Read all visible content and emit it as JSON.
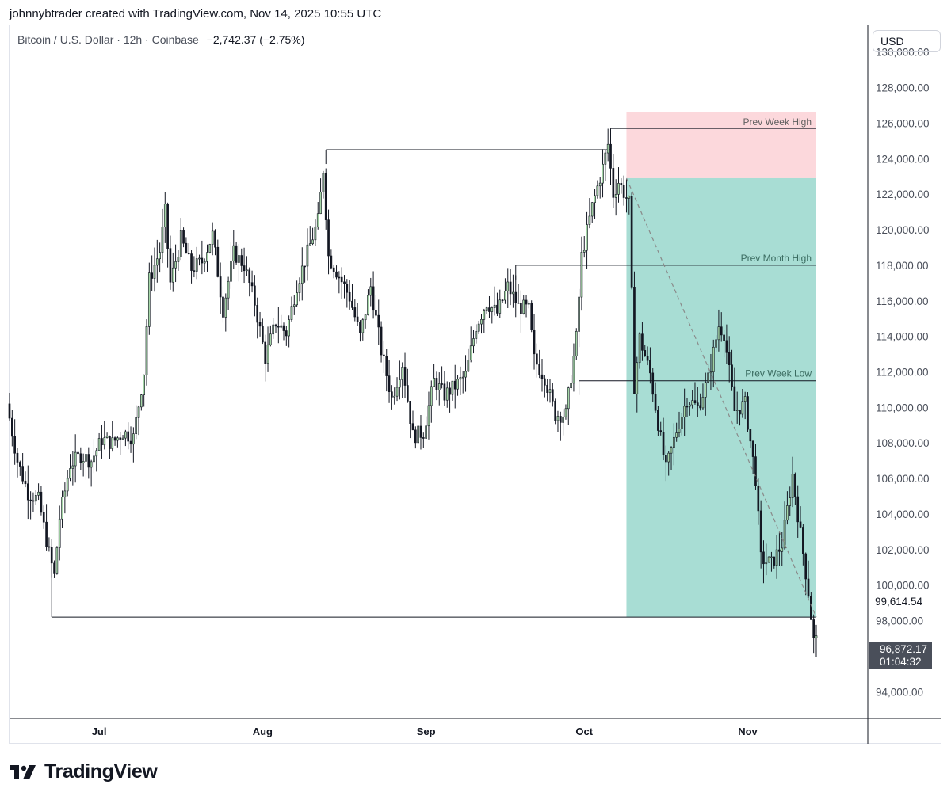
{
  "header": {
    "text": "johnnybtrader created with TradingView.com, Nov 14, 2025 10:55 UTC"
  },
  "symbol": {
    "name": "Bitcoin / U.S. Dollar · 12h · Coinbase",
    "change": "−2,742.37 (−2.75%)"
  },
  "currency": "USD",
  "last_price_label": "99,614.54",
  "current_price": {
    "value": "96,872.17",
    "countdown": "01:04:32"
  },
  "branding": {
    "logo_text": "TradingView"
  },
  "colors": {
    "up": "#a5d6a7",
    "down": "#131722",
    "tp_zone": "#a8ddd4",
    "sl_zone": "#fcd8dc",
    "line": "#131722"
  },
  "chart_data": {
    "type": "candlestick",
    "ylim": [
      92500,
      131500
    ],
    "y_ticks": [
      "94,000.00",
      "98,000.00",
      "100,000.00",
      "102,000.00",
      "104,000.00",
      "106,000.00",
      "108,000.00",
      "110,000.00",
      "112,000.00",
      "114,000.00",
      "116,000.00",
      "118,000.00",
      "120,000.00",
      "122,000.00",
      "124,000.00",
      "126,000.00",
      "128,000.00",
      "130,000.00"
    ],
    "y_tick_values": [
      94000,
      98000,
      100000,
      102000,
      104000,
      106000,
      108000,
      110000,
      112000,
      114000,
      116000,
      118000,
      120000,
      122000,
      124000,
      126000,
      128000,
      130000
    ],
    "x_months": [
      {
        "label": "Jul",
        "date": "2025-07-01"
      },
      {
        "label": "Aug",
        "date": "2025-08-01"
      },
      {
        "label": "Sep",
        "date": "2025-09-01"
      },
      {
        "label": "Oct",
        "date": "2025-10-01"
      },
      {
        "label": "Nov",
        "date": "2025-11-01"
      }
    ],
    "x_range": [
      "2025-06-14",
      "2025-11-14"
    ],
    "price_path": [
      [
        "2025-06-14",
        110200
      ],
      [
        "2025-06-16",
        107000
      ],
      [
        "2025-06-18",
        105200
      ],
      [
        "2025-06-20",
        104800
      ],
      [
        "2025-06-22",
        101800
      ],
      [
        "2025-06-23",
        100500
      ],
      [
        "2025-06-24",
        103800
      ],
      [
        "2025-06-26",
        106800
      ],
      [
        "2025-06-28",
        107300
      ],
      [
        "2025-06-30",
        107000
      ],
      [
        "2025-07-02",
        108200
      ],
      [
        "2025-07-04",
        108000
      ],
      [
        "2025-07-06",
        108600
      ],
      [
        "2025-07-08",
        108300
      ],
      [
        "2025-07-10",
        112000
      ],
      [
        "2025-07-11",
        117200
      ],
      [
        "2025-07-13",
        118800
      ],
      [
        "2025-07-14",
        121000
      ],
      [
        "2025-07-15",
        117000
      ],
      [
        "2025-07-17",
        119500
      ],
      [
        "2025-07-19",
        117800
      ],
      [
        "2025-07-21",
        118200
      ],
      [
        "2025-07-23",
        119700
      ],
      [
        "2025-07-25",
        115500
      ],
      [
        "2025-07-27",
        118700
      ],
      [
        "2025-07-29",
        118000
      ],
      [
        "2025-07-31",
        115900
      ],
      [
        "2025-08-02",
        112800
      ],
      [
        "2025-08-04",
        114800
      ],
      [
        "2025-08-06",
        114200
      ],
      [
        "2025-08-08",
        116900
      ],
      [
        "2025-08-10",
        118700
      ],
      [
        "2025-08-12",
        120500
      ],
      [
        "2025-08-13",
        123400
      ],
      [
        "2025-08-14",
        118500
      ],
      [
        "2025-08-16",
        117400
      ],
      [
        "2025-08-18",
        116200
      ],
      [
        "2025-08-20",
        114000
      ],
      [
        "2025-08-22",
        116800
      ],
      [
        "2025-08-24",
        113200
      ],
      [
        "2025-08-26",
        110500
      ],
      [
        "2025-08-28",
        112500
      ],
      [
        "2025-08-30",
        108400
      ],
      [
        "2025-09-01",
        108600
      ],
      [
        "2025-09-03",
        111500
      ],
      [
        "2025-09-05",
        110700
      ],
      [
        "2025-09-07",
        111200
      ],
      [
        "2025-09-09",
        111800
      ],
      [
        "2025-09-11",
        114600
      ],
      [
        "2025-09-13",
        115900
      ],
      [
        "2025-09-15",
        115300
      ],
      [
        "2025-09-17",
        116800
      ],
      [
        "2025-09-19",
        115700
      ],
      [
        "2025-09-21",
        115500
      ],
      [
        "2025-09-22",
        112700
      ],
      [
        "2025-09-24",
        111700
      ],
      [
        "2025-09-26",
        109600
      ],
      [
        "2025-09-28",
        109600
      ],
      [
        "2025-09-30",
        113900
      ],
      [
        "2025-10-01",
        118500
      ],
      [
        "2025-10-03",
        121300
      ],
      [
        "2025-10-05",
        123500
      ],
      [
        "2025-10-06",
        124800
      ],
      [
        "2025-10-07",
        122000
      ],
      [
        "2025-10-08",
        122700
      ],
      [
        "2025-10-10",
        121500
      ],
      [
        "2025-10-11",
        111200
      ],
      [
        "2025-10-12",
        113900
      ],
      [
        "2025-10-14",
        111900
      ],
      [
        "2025-10-16",
        108200
      ],
      [
        "2025-10-17",
        106500
      ],
      [
        "2025-10-19",
        108700
      ],
      [
        "2025-10-21",
        110500
      ],
      [
        "2025-10-23",
        110000
      ],
      [
        "2025-10-25",
        111600
      ],
      [
        "2025-10-27",
        114600
      ],
      [
        "2025-10-28",
        114200
      ],
      [
        "2025-10-30",
        109800
      ],
      [
        "2025-11-01",
        110200
      ],
      [
        "2025-11-03",
        106000
      ],
      [
        "2025-11-04",
        101500
      ],
      [
        "2025-11-06",
        101200
      ],
      [
        "2025-11-08",
        102300
      ],
      [
        "2025-11-10",
        106200
      ],
      [
        "2025-11-12",
        101800
      ],
      [
        "2025-11-13",
        99600
      ],
      [
        "2025-11-14",
        96872
      ]
    ],
    "levels": [
      {
        "name": "june-low",
        "price": 98200,
        "from": "2025-06-22",
        "to": "2025-10-09"
      },
      {
        "name": "aug-high",
        "price": 124500,
        "from": "2025-08-13",
        "to": "2025-10-06"
      },
      {
        "name": "sep-high",
        "price": 118000,
        "from": "2025-09-18",
        "to": "2025-10-09"
      },
      {
        "name": "sep-end-base",
        "price": 111500,
        "from": "2025-09-30",
        "to": "2025-10-09"
      },
      {
        "name": "oct-high",
        "price": 125700,
        "from": "2025-10-06",
        "to": "2025-10-08"
      }
    ],
    "annotations": [
      {
        "label": "Prev Week High",
        "price": 125700
      },
      {
        "label": "Prev Month High",
        "price": 118000
      },
      {
        "label": "Prev Week Low",
        "price": 111500
      }
    ],
    "position": {
      "start": "2025-10-09",
      "end": "2025-11-14",
      "stop_top": 126600,
      "entry": 122900,
      "target": 98200
    },
    "trend_line": {
      "from": [
        "2025-10-09",
        122900
      ],
      "to": [
        "2025-11-14",
        98200
      ]
    }
  }
}
